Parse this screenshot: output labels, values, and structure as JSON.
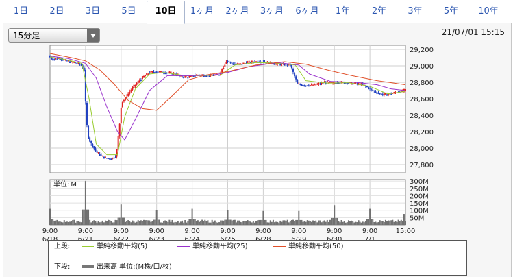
{
  "tabs": [
    {
      "label": "1日",
      "active": false
    },
    {
      "label": "2日",
      "active": false
    },
    {
      "label": "3日",
      "active": false
    },
    {
      "label": "5日",
      "active": false
    },
    {
      "label": "10日",
      "active": true
    },
    {
      "label": "1ヶ月",
      "active": false
    },
    {
      "label": "2ヶ月",
      "active": false
    },
    {
      "label": "3ヶ月",
      "active": false
    },
    {
      "label": "6ヶ月",
      "active": false
    },
    {
      "label": "1年",
      "active": false
    },
    {
      "label": "2年",
      "active": false
    },
    {
      "label": "3年",
      "active": false
    },
    {
      "label": "5年",
      "active": false
    },
    {
      "label": "10年",
      "active": false
    }
  ],
  "interval_select": {
    "value": "15分足"
  },
  "timestamp": "21/07/01 15:15",
  "colors": {
    "ma5": "#9acd32",
    "ma25": "#9932cc",
    "ma50": "#e0502a",
    "candle_up": "#e02020",
    "candle_down": "#2040c0",
    "volume": "#707070"
  },
  "legend": {
    "upper_label": "上段:",
    "lower_label": "下段:",
    "ma5": "単純移動平均(5)",
    "ma25": "単純移動平均(25)",
    "ma50": "単純移動平均(50)",
    "volume": "出来高 単位:(M株/口/枚)"
  },
  "chart_data": [
    {
      "type": "line",
      "subtype": "candlestick_with_moving_averages",
      "ylim": [
        27700,
        29250
      ],
      "y_ticks": [
        27800,
        28000,
        28200,
        28400,
        28600,
        28800,
        29000,
        29200
      ],
      "y_tick_labels": [
        "27,800",
        "28,000",
        "28,200",
        "28,400",
        "28,600",
        "28,800",
        "29,000",
        "29,200"
      ],
      "x_ticks": [
        {
          "time": "9:00",
          "date": "6/18"
        },
        {
          "time": "9:00",
          "date": "6/21"
        },
        {
          "time": "9:00",
          "date": "6/22"
        },
        {
          "time": "9:00",
          "date": "6/23"
        },
        {
          "time": "9:00",
          "date": "6/24"
        },
        {
          "time": "9:00",
          "date": "6/25"
        },
        {
          "time": "9:00",
          "date": "6/28"
        },
        {
          "time": "9:00",
          "date": "6/29"
        },
        {
          "time": "9:00",
          "date": "6/30"
        },
        {
          "time": "9:00",
          "date": "7/1"
        },
        {
          "time": "15:00",
          "date": ""
        }
      ],
      "x_range": [
        0,
        10
      ],
      "price_path": [
        [
          0.0,
          29120
        ],
        [
          0.1,
          29080
        ],
        [
          0.3,
          29090
        ],
        [
          0.5,
          29060
        ],
        [
          0.7,
          29040
        ],
        [
          0.9,
          29020
        ],
        [
          1.0,
          28950
        ],
        [
          1.05,
          28450
        ],
        [
          1.1,
          28150
        ],
        [
          1.2,
          28050
        ],
        [
          1.35,
          27950
        ],
        [
          1.5,
          27900
        ],
        [
          1.6,
          27880
        ],
        [
          1.75,
          27870
        ],
        [
          1.9,
          27900
        ],
        [
          2.0,
          28300
        ],
        [
          2.05,
          28550
        ],
        [
          2.15,
          28600
        ],
        [
          2.3,
          28700
        ],
        [
          2.5,
          28800
        ],
        [
          2.7,
          28880
        ],
        [
          2.85,
          28920
        ],
        [
          3.0,
          28930
        ],
        [
          3.2,
          28920
        ],
        [
          3.5,
          28910
        ],
        [
          3.7,
          28870
        ],
        [
          3.9,
          28860
        ],
        [
          4.0,
          28870
        ],
        [
          4.2,
          28890
        ],
        [
          4.5,
          28880
        ],
        [
          4.8,
          28890
        ],
        [
          5.0,
          29060
        ],
        [
          5.2,
          29020
        ],
        [
          5.4,
          29020
        ],
        [
          5.6,
          29040
        ],
        [
          5.8,
          29050
        ],
        [
          6.0,
          29050
        ],
        [
          6.3,
          29030
        ],
        [
          6.5,
          29020
        ],
        [
          6.8,
          29010
        ],
        [
          7.0,
          28780
        ],
        [
          7.2,
          28760
        ],
        [
          7.5,
          28770
        ],
        [
          7.8,
          28800
        ],
        [
          8.0,
          28790
        ],
        [
          8.2,
          28800
        ],
        [
          8.5,
          28790
        ],
        [
          8.8,
          28780
        ],
        [
          9.0,
          28730
        ],
        [
          9.2,
          28680
        ],
        [
          9.4,
          28650
        ],
        [
          9.6,
          28660
        ],
        [
          9.8,
          28680
        ],
        [
          10.0,
          28700
        ]
      ],
      "series": [
        {
          "name": "単純移動平均(5)",
          "color": "#9acd32",
          "points": [
            [
              0.0,
              29110
            ],
            [
              0.5,
              29070
            ],
            [
              0.9,
              29030
            ],
            [
              1.1,
              28600
            ],
            [
              1.3,
              28050
            ],
            [
              1.6,
              27920
            ],
            [
              1.9,
              27920
            ],
            [
              2.1,
              28380
            ],
            [
              2.4,
              28720
            ],
            [
              2.8,
              28900
            ],
            [
              3.2,
              28920
            ],
            [
              3.8,
              28880
            ],
            [
              4.2,
              28880
            ],
            [
              4.8,
              28890
            ],
            [
              5.2,
              29010
            ],
            [
              5.8,
              29040
            ],
            [
              6.5,
              29030
            ],
            [
              6.9,
              29010
            ],
            [
              7.2,
              28820
            ],
            [
              7.8,
              28790
            ],
            [
              8.4,
              28795
            ],
            [
              9.0,
              28750
            ],
            [
              9.5,
              28660
            ],
            [
              10.0,
              28690
            ]
          ]
        },
        {
          "name": "単純移動平均(25)",
          "color": "#9932cc",
          "points": [
            [
              0.0,
              29120
            ],
            [
              0.5,
              29090
            ],
            [
              1.0,
              29030
            ],
            [
              1.3,
              28850
            ],
            [
              1.6,
              28500
            ],
            [
              1.9,
              28200
            ],
            [
              2.1,
              28100
            ],
            [
              2.4,
              28350
            ],
            [
              2.8,
              28700
            ],
            [
              3.3,
              28880
            ],
            [
              4.0,
              28880
            ],
            [
              4.6,
              28890
            ],
            [
              5.0,
              28920
            ],
            [
              5.6,
              28990
            ],
            [
              6.4,
              29040
            ],
            [
              7.0,
              29010
            ],
            [
              7.3,
              28900
            ],
            [
              7.9,
              28810
            ],
            [
              8.6,
              28800
            ],
            [
              9.2,
              28770
            ],
            [
              9.6,
              28720
            ],
            [
              10.0,
              28700
            ]
          ]
        },
        {
          "name": "単純移動平均(50)",
          "color": "#e0502a",
          "points": [
            [
              0.0,
              29150
            ],
            [
              0.6,
              29100
            ],
            [
              1.0,
              29060
            ],
            [
              1.4,
              28950
            ],
            [
              1.8,
              28780
            ],
            [
              2.2,
              28580
            ],
            [
              2.6,
              28480
            ],
            [
              3.0,
              28460
            ],
            [
              3.4,
              28620
            ],
            [
              3.9,
              28830
            ],
            [
              4.4,
              28890
            ],
            [
              5.0,
              28930
            ],
            [
              5.8,
              29010
            ],
            [
              6.6,
              29050
            ],
            [
              7.2,
              29020
            ],
            [
              7.8,
              28950
            ],
            [
              8.5,
              28880
            ],
            [
              9.2,
              28820
            ],
            [
              10.0,
              28770
            ]
          ]
        }
      ]
    },
    {
      "type": "bar",
      "subtype": "volume",
      "ylim": [
        0,
        310
      ],
      "y_ticks": [
        50,
        100,
        150,
        200,
        250,
        300
      ],
      "y_tick_labels": [
        "50M",
        "100M",
        "150M",
        "200M",
        "250M",
        "300M"
      ],
      "unit_label": "単位:",
      "unit_value": "M",
      "spikes": [
        {
          "x": 0.0,
          "value": 110
        },
        {
          "x": 1.0,
          "value": 300
        },
        {
          "x": 2.0,
          "value": 140
        },
        {
          "x": 3.0,
          "value": 100
        },
        {
          "x": 4.0,
          "value": 110
        },
        {
          "x": 5.0,
          "value": 100
        },
        {
          "x": 6.0,
          "value": 95
        },
        {
          "x": 7.0,
          "value": 95
        },
        {
          "x": 8.0,
          "value": 135
        },
        {
          "x": 9.0,
          "value": 110
        },
        {
          "x": 9.95,
          "value": 75
        }
      ],
      "baseline": 15
    }
  ]
}
